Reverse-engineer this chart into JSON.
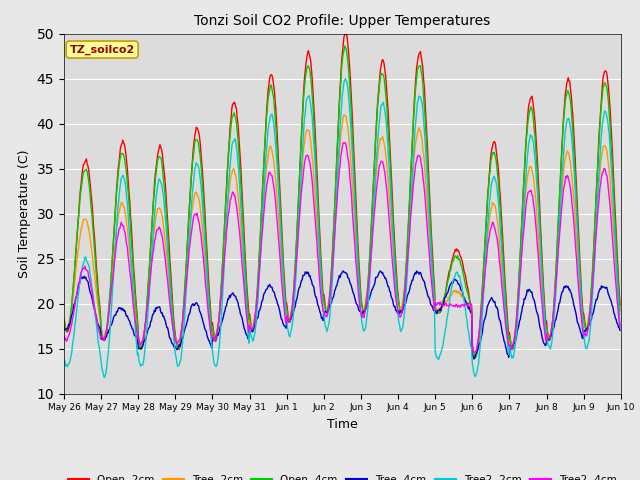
{
  "title": "Tonzi Soil CO2 Profile: Upper Temperatures",
  "xlabel": "Time",
  "ylabel": "Soil Temperature (C)",
  "ylim": [
    10,
    50
  ],
  "yticks": [
    10,
    15,
    20,
    25,
    30,
    35,
    40,
    45,
    50
  ],
  "background_color": "#e8e8e8",
  "plot_bg_color": "#dcdcdc",
  "series_colors": {
    "Open -2cm": "#ff0000",
    "Tree -2cm": "#ff9900",
    "Open -4cm": "#00cc00",
    "Tree -4cm": "#0000cc",
    "Tree2 -2cm": "#00cccc",
    "Tree2 -4cm": "#ff00ff"
  },
  "label_box_text": "TZ_soilco2",
  "label_box_color": "#ffff99",
  "label_box_edge": "#cc9900",
  "label_text_color": "#990000",
  "n_days": 15,
  "pts_per_day": 48,
  "open2_peaks": [
    36,
    38,
    37.5,
    39.5,
    42.5,
    45.5,
    48,
    50,
    47,
    48,
    26,
    38,
    43,
    45,
    46
  ],
  "open2_troughs": [
    17,
    16,
    15,
    15,
    16,
    17,
    18,
    19,
    19,
    19,
    19,
    14,
    15,
    16,
    17
  ],
  "tree4_peaks": [
    23,
    19.5,
    19.5,
    20,
    21,
    22,
    23.5,
    23.5,
    23.5,
    23.5,
    22.5,
    20.5,
    21.5,
    22,
    22
  ],
  "tree4_troughs": [
    17,
    16,
    15,
    15,
    16,
    17,
    18,
    19,
    19,
    19,
    19,
    14,
    15,
    16,
    17
  ],
  "tree2_2cm_troughs": [
    13,
    12,
    13,
    13,
    13,
    16,
    16.5,
    17,
    17,
    17,
    14,
    12,
    14,
    15,
    15
  ],
  "tree2_4cm_troughs": [
    16,
    16,
    15.5,
    15.5,
    16,
    17,
    18,
    18.5,
    18.5,
    18.5,
    20,
    14.5,
    15,
    16,
    16.5
  ],
  "tick_labels": [
    "May 26",
    "May 27",
    "May 28",
    "May 29",
    "May 30",
    "May 31",
    "Jun 1",
    "Jun 2",
    "Jun 3",
    "Jun 4",
    "Jun 5",
    "Jun 6",
    "Jun 7",
    "Jun 8",
    "Jun 9",
    "Jun 10"
  ]
}
